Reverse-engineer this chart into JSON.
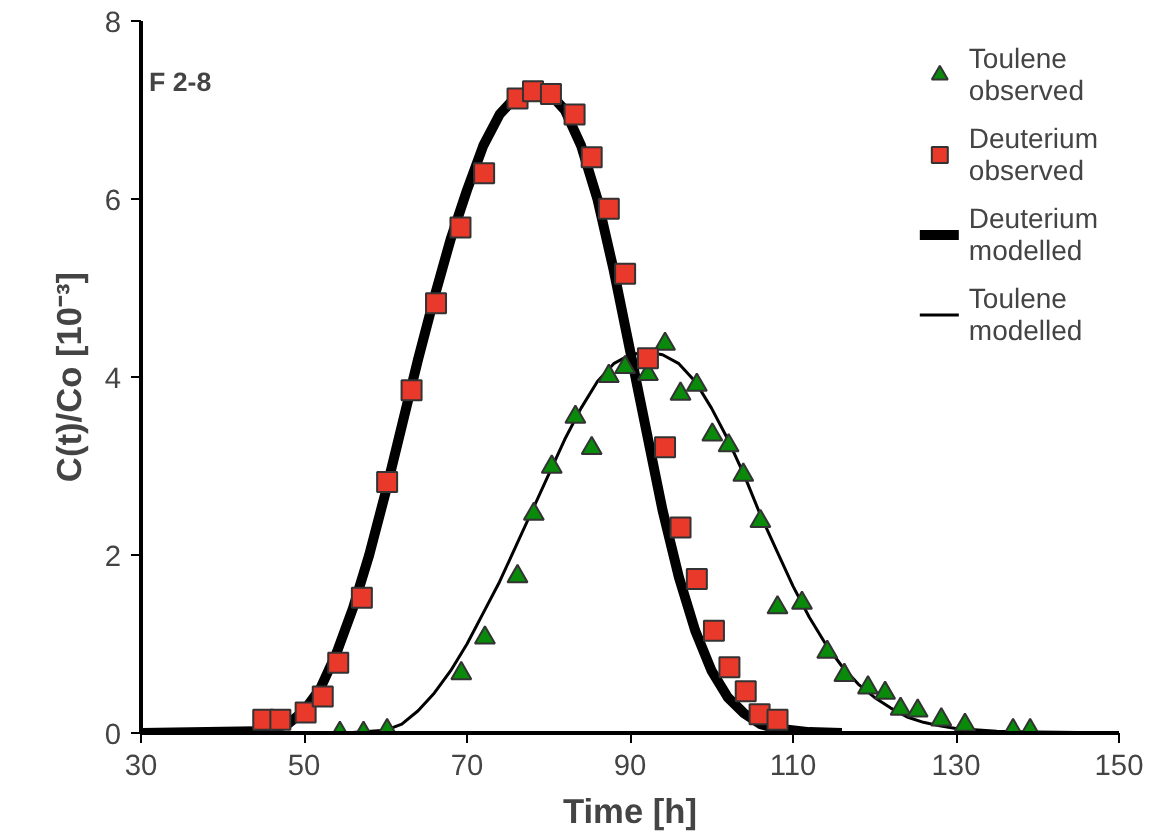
{
  "chart_data": {
    "type": "line",
    "xlabel": "Time [h]",
    "ylabel": "C(t)/Co [10⁻³]",
    "annotations": [
      "F 2-8"
    ],
    "xlim": [
      30,
      150
    ],
    "xticks": [
      30,
      50,
      70,
      90,
      110,
      130,
      150
    ],
    "ylim": [
      0,
      8
    ],
    "yticks": [
      0,
      2,
      4,
      6,
      8
    ],
    "grid": false,
    "legend": "top right",
    "series": [
      {
        "name": "Toulene observed",
        "type": "scatter",
        "marker": "triangle",
        "color": "#0a8a0a",
        "x": [
          54.4,
          57.3,
          60.2,
          69.3,
          72.2,
          76.2,
          78.2,
          80.4,
          83.3,
          85.3,
          87.4,
          89.4,
          92.2,
          94.3,
          96.2,
          98.2,
          100.1,
          102.1,
          103.9,
          106.0,
          108.1,
          111.1,
          114.2,
          116.3,
          119.2,
          121.3,
          123.2,
          125.3,
          128.2,
          131.1,
          137.0,
          139.1
        ],
        "values": [
          0,
          0,
          0.03,
          0.67,
          1.07,
          1.76,
          2.46,
          2.99,
          3.55,
          3.2,
          4.01,
          4.11,
          4.03,
          4.37,
          3.81,
          3.91,
          3.35,
          3.23,
          2.9,
          2.38,
          1.41,
          1.46,
          0.91,
          0.65,
          0.51,
          0.45,
          0.27,
          0.25,
          0.15,
          0.09,
          0.03,
          0.03
        ]
      },
      {
        "name": "Deuterium observed",
        "type": "scatter",
        "marker": "square",
        "color": "#e8392a",
        "x": [
          45.0,
          47.1,
          50.2,
          52.3,
          54.2,
          57.1,
          60.2,
          63.2,
          66.2,
          69.2,
          72.1,
          76.2,
          78.1,
          80.3,
          83.2,
          85.3,
          87.4,
          89.4,
          92.2,
          94.3,
          96.2,
          98.2,
          100.3,
          102.2,
          104.2,
          105.9,
          108.1
        ],
        "values": [
          0.15,
          0.15,
          0.23,
          0.41,
          0.79,
          1.52,
          2.82,
          3.85,
          4.83,
          5.68,
          6.29,
          7.13,
          7.21,
          7.18,
          6.95,
          6.47,
          5.89,
          5.16,
          4.21,
          3.21,
          2.31,
          1.73,
          1.15,
          0.74,
          0.47,
          0.21,
          0.15
        ]
      },
      {
        "name": "Deuterium modelled",
        "color": "#000000",
        "x": [
          30,
          45,
          48,
          50,
          52,
          54,
          56,
          58,
          60,
          62,
          64,
          66,
          68,
          70,
          72,
          74,
          76,
          78,
          80,
          82,
          84,
          86,
          88,
          90,
          92,
          94,
          96,
          98,
          100,
          102,
          104,
          106,
          108,
          112,
          116
        ],
        "values": [
          0,
          0.02,
          0.1,
          0.25,
          0.5,
          0.9,
          1.4,
          2.0,
          2.7,
          3.45,
          4.2,
          4.9,
          5.55,
          6.1,
          6.6,
          6.95,
          7.15,
          7.25,
          7.2,
          7.0,
          6.6,
          6.0,
          5.2,
          4.3,
          3.4,
          2.5,
          1.75,
          1.15,
          0.7,
          0.4,
          0.22,
          0.1,
          0.05,
          0.01,
          0
        ]
      },
      {
        "name": "Toulene modelled",
        "color": "#000000",
        "x": [
          30,
          55,
          60,
          62,
          64,
          66,
          68,
          70,
          72,
          74,
          76,
          78,
          80,
          82,
          84,
          86,
          88,
          90,
          92,
          94,
          96,
          98,
          100,
          102,
          104,
          106,
          108,
          110,
          112,
          114,
          116,
          118,
          120,
          122,
          124,
          126,
          128,
          130,
          135,
          140,
          150
        ],
        "values": [
          0,
          0,
          0.03,
          0.1,
          0.25,
          0.45,
          0.7,
          1.0,
          1.35,
          1.7,
          2.1,
          2.5,
          2.9,
          3.3,
          3.65,
          3.95,
          4.15,
          4.25,
          4.28,
          4.25,
          4.15,
          3.95,
          3.65,
          3.3,
          2.9,
          2.45,
          2.05,
          1.65,
          1.3,
          1.0,
          0.75,
          0.55,
          0.4,
          0.28,
          0.18,
          0.12,
          0.08,
          0.05,
          0.02,
          0.01,
          0
        ]
      }
    ]
  }
}
